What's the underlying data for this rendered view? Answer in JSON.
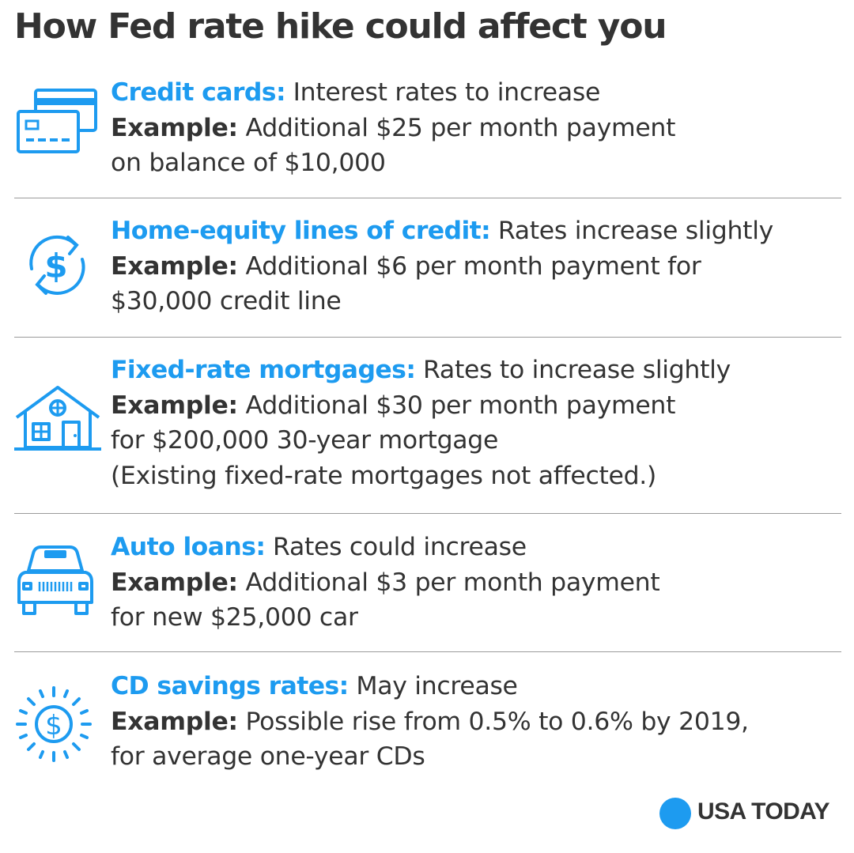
{
  "title": "How Fed rate hike could affect you",
  "accent_color": "#1d9bf0",
  "items": [
    {
      "icon": "credit-card-icon",
      "heading": "Credit cards:",
      "summary": " Interest rates to increase",
      "example_label": "Example:",
      "example_line1": " Additional $25 per month payment",
      "lines": [
        "on balance of $10,000"
      ]
    },
    {
      "icon": "dollar-exchange-icon",
      "heading": "Home-equity lines of credit:",
      "summary": " Rates increase slightly",
      "example_label": "Example:",
      "example_line1": " Additional $6 per month payment for",
      "lines": [
        "$30,000 credit line"
      ]
    },
    {
      "icon": "house-icon",
      "heading": "Fixed-rate mortgages:",
      "summary": " Rates to increase slightly",
      "example_label": "Example:",
      "example_line1": " Additional $30 per month payment",
      "lines": [
        "for $200,000 30-year mortgage",
        "(Existing fixed-rate mortgages not affected.)"
      ]
    },
    {
      "icon": "car-icon",
      "heading": "Auto loans:",
      "summary": " Rates could increase",
      "example_label": "Example:",
      "example_line1": " Additional $3 per month payment",
      "lines": [
        "for new $25,000 car"
      ]
    },
    {
      "icon": "dollar-sun-icon",
      "heading": "CD savings rates:",
      "summary": " May increase",
      "example_label": "Example:",
      "example_line1": " Possible rise from 0.5% to 0.6% by 2019,",
      "lines": [
        "for average one-year CDs"
      ]
    }
  ],
  "footer": {
    "logo_text": "USA TODAY"
  }
}
